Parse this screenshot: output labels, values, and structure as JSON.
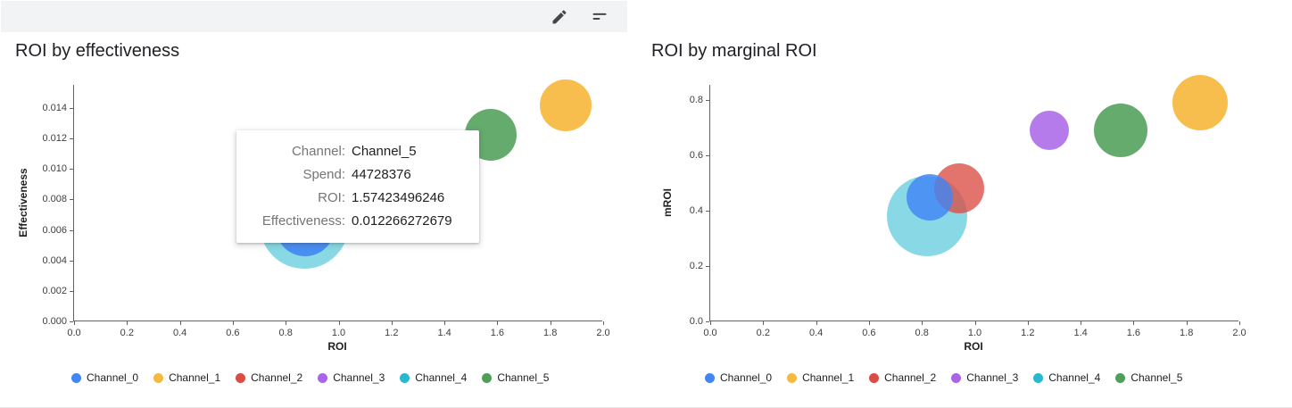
{
  "toolbar": {
    "icons": [
      "edit-icon",
      "filter-icon"
    ]
  },
  "palette": {
    "Channel_0": "#4285F4",
    "Channel_1": "#F6B93F",
    "Channel_2": "#DB4D44",
    "Channel_3": "#A964E8",
    "Channel_4": "#27BACF",
    "Channel_5": "#4F9F59"
  },
  "tooltip": {
    "rows": [
      {
        "label": "Channel:",
        "value": "Channel_5"
      },
      {
        "label": "Spend:",
        "value": "44728376"
      },
      {
        "label": "ROI:",
        "value": "1.57423496246"
      },
      {
        "label": "Effectiveness:",
        "value": "0.012266272679"
      }
    ]
  },
  "chart_data": [
    {
      "type": "scatter",
      "title": "ROI by effectiveness",
      "xlabel": "ROI",
      "ylabel": "Effectiveness",
      "xlim": [
        0,
        2.0
      ],
      "ylim": [
        0,
        0.014
      ],
      "grid": false,
      "legend_position": "bottom",
      "x_ticks": [
        "0.0",
        "0.2",
        "0.4",
        "0.6",
        "0.8",
        "1.0",
        "1.2",
        "1.4",
        "1.6",
        "1.8",
        "2.0"
      ],
      "y_ticks": [
        "0.000",
        "0.002",
        "0.004",
        "0.006",
        "0.008",
        "0.010",
        "0.012",
        "0.014"
      ],
      "legend": [
        "Channel_0",
        "Channel_1",
        "Channel_2",
        "Channel_3",
        "Channel_4",
        "Channel_5"
      ],
      "points": [
        {
          "series": "Channel_4",
          "x": 0.87,
          "y": 0.0064,
          "r": 50,
          "opacity": 0.55
        },
        {
          "series": "Channel_0",
          "x": 0.875,
          "y": 0.0062,
          "r": 33,
          "opacity": 0.9
        },
        {
          "series": "Channel_5",
          "x": 1.57423496246,
          "y": 0.012266272679,
          "spend": 44728376,
          "r": 29,
          "opacity": 0.88
        },
        {
          "series": "Channel_1",
          "x": 1.86,
          "y": 0.0142,
          "r": 29,
          "opacity": 0.92
        }
      ]
    },
    {
      "type": "scatter",
      "title": "ROI by marginal ROI",
      "xlabel": "ROI",
      "ylabel": "mROI",
      "xlim": [
        0,
        2.0
      ],
      "ylim": [
        0,
        0.8
      ],
      "grid": false,
      "legend_position": "bottom",
      "x_ticks": [
        "0.0",
        "0.2",
        "0.4",
        "0.6",
        "0.8",
        "1.0",
        "1.2",
        "1.4",
        "1.6",
        "1.8",
        "2.0"
      ],
      "y_ticks": [
        "0.0",
        "0.2",
        "0.4",
        "0.6",
        "0.8"
      ],
      "legend": [
        "Channel_0",
        "Channel_1",
        "Channel_2",
        "Channel_3",
        "Channel_4",
        "Channel_5"
      ],
      "points": [
        {
          "series": "Channel_4",
          "x": 0.82,
          "y": 0.38,
          "r": 45,
          "opacity": 0.55
        },
        {
          "series": "Channel_2",
          "x": 0.94,
          "y": 0.48,
          "r": 28,
          "opacity": 0.78
        },
        {
          "series": "Channel_0",
          "x": 0.83,
          "y": 0.45,
          "r": 26,
          "opacity": 0.82
        },
        {
          "series": "Channel_3",
          "x": 1.28,
          "y": 0.69,
          "r": 22,
          "opacity": 0.85
        },
        {
          "series": "Channel_5",
          "x": 1.55,
          "y": 0.69,
          "r": 30,
          "opacity": 0.88
        },
        {
          "series": "Channel_1",
          "x": 1.85,
          "y": 0.79,
          "r": 31,
          "opacity": 0.92
        }
      ]
    }
  ]
}
